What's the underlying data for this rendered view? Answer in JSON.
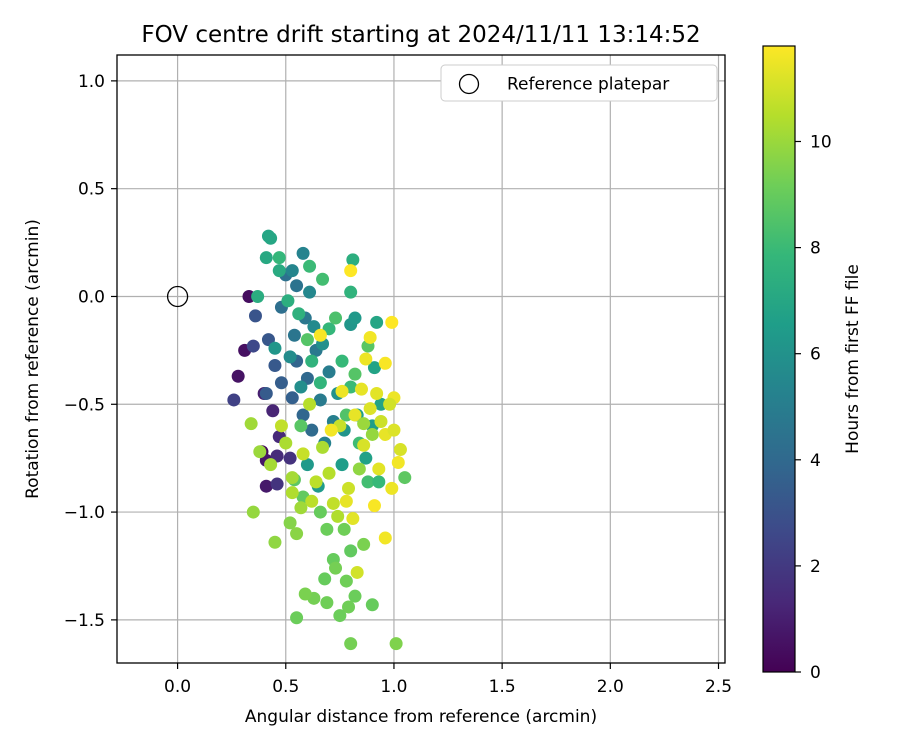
{
  "chart_data": {
    "type": "scatter",
    "title": "FOV centre drift starting at 2024/11/11 13:14:52",
    "xlabel": "Angular distance from reference (arcmin)",
    "ylabel": "Rotation from reference (arcmin)",
    "xlim": [
      -0.28,
      2.53
    ],
    "ylim": [
      -1.7,
      1.12
    ],
    "xticks": [
      0.0,
      0.5,
      1.0,
      1.5,
      2.0,
      2.5
    ],
    "xtick_labels": [
      "0.0",
      "0.5",
      "1.0",
      "1.5",
      "2.0",
      "2.5"
    ],
    "yticks": [
      1.0,
      0.5,
      0.0,
      -0.5,
      -1.0,
      -1.5
    ],
    "ytick_labels": [
      "1.0",
      "0.5",
      "0.0",
      "−0.5",
      "−1.0",
      "−1.5"
    ],
    "grid": true,
    "legend": {
      "placement": "top-right",
      "entries": [
        "Reference platepar"
      ]
    },
    "reference_point": {
      "x": 0.0,
      "y": 0.0
    },
    "colorbar": {
      "label": "Hours from first FF file",
      "colormap": "viridis",
      "range": [
        0,
        11.8
      ],
      "ticks": [
        0,
        2,
        4,
        6,
        8,
        10
      ],
      "tick_labels": [
        "0",
        "2",
        "4",
        "6",
        "8",
        "10"
      ],
      "colors": [
        "#440154",
        "#482878",
        "#3e4989",
        "#31688e",
        "#26828e",
        "#1f9e89",
        "#35b779",
        "#6ece58",
        "#b5de2b",
        "#fde725"
      ]
    },
    "series": [
      {
        "points": [
          [
            0.33,
            0.0,
            0.4
          ],
          [
            0.31,
            -0.25,
            0.5
          ],
          [
            0.28,
            -0.37,
            0.6
          ],
          [
            0.39,
            -0.72,
            0.3
          ],
          [
            0.41,
            -0.76,
            0.7
          ],
          [
            0.41,
            -0.88,
            0.8
          ],
          [
            0.4,
            -0.45,
            1.0
          ],
          [
            0.44,
            -0.53,
            1.2
          ],
          [
            0.47,
            -0.65,
            1.4
          ],
          [
            0.46,
            -0.74,
            1.5
          ],
          [
            0.52,
            -0.75,
            1.7
          ],
          [
            0.46,
            -0.87,
            1.8
          ],
          [
            0.26,
            -0.48,
            2.3
          ],
          [
            0.35,
            -0.23,
            2.6
          ],
          [
            0.36,
            -0.09,
            3.1
          ],
          [
            0.42,
            -0.2,
            3.2
          ],
          [
            0.45,
            -0.32,
            3.3
          ],
          [
            0.41,
            -0.45,
            3.4
          ],
          [
            0.48,
            -0.4,
            3.5
          ],
          [
            0.53,
            -0.47,
            3.6
          ],
          [
            0.55,
            -0.3,
            3.8
          ],
          [
            0.58,
            -0.55,
            3.9
          ],
          [
            0.6,
            -0.38,
            4.0
          ],
          [
            0.62,
            -0.62,
            4.1
          ],
          [
            0.48,
            -0.05,
            4.3
          ],
          [
            0.5,
            0.1,
            4.4
          ],
          [
            0.55,
            0.05,
            4.5
          ],
          [
            0.54,
            -0.18,
            4.6
          ],
          [
            0.59,
            -0.1,
            4.7
          ],
          [
            0.64,
            -0.25,
            4.8
          ],
          [
            0.66,
            -0.48,
            4.9
          ],
          [
            0.7,
            -0.35,
            5.0
          ],
          [
            0.72,
            -0.58,
            5.1
          ],
          [
            0.68,
            -0.68,
            5.2
          ],
          [
            0.58,
            0.2,
            5.3
          ],
          [
            0.53,
            0.12,
            5.4
          ],
          [
            0.61,
            0.02,
            5.5
          ],
          [
            0.63,
            -0.14,
            5.6
          ],
          [
            0.52,
            -0.28,
            5.7
          ],
          [
            0.57,
            -0.42,
            5.8
          ],
          [
            0.67,
            -0.22,
            5.9
          ],
          [
            0.74,
            -0.45,
            6.0
          ],
          [
            0.77,
            -0.62,
            6.1
          ],
          [
            0.8,
            -0.13,
            6.2
          ],
          [
            0.82,
            -0.1,
            6.3
          ],
          [
            0.45,
            -0.24,
            6.2
          ],
          [
            0.6,
            -0.78,
            6.3
          ],
          [
            0.65,
            -0.88,
            6.4
          ],
          [
            0.76,
            -0.78,
            6.5
          ],
          [
            0.83,
            -0.55,
            6.6
          ],
          [
            0.87,
            -0.75,
            6.7
          ],
          [
            0.91,
            -0.33,
            6.8
          ],
          [
            0.92,
            -0.12,
            6.9
          ],
          [
            0.94,
            -0.5,
            6.8
          ],
          [
            0.9,
            -0.6,
            6.5
          ],
          [
            0.42,
            0.28,
            6.9
          ],
          [
            0.43,
            0.27,
            7.0
          ],
          [
            0.41,
            0.18,
            7.1
          ],
          [
            0.47,
            0.12,
            7.2
          ],
          [
            0.37,
            0.0,
            7.3
          ],
          [
            0.51,
            -0.02,
            7.4
          ],
          [
            0.56,
            -0.08,
            7.5
          ],
          [
            0.62,
            -0.3,
            7.6
          ],
          [
            0.66,
            -0.4,
            7.7
          ],
          [
            0.7,
            -0.15,
            7.8
          ],
          [
            0.76,
            -0.3,
            7.9
          ],
          [
            0.8,
            -0.42,
            8.0
          ],
          [
            0.84,
            -0.68,
            8.1
          ],
          [
            0.88,
            -0.86,
            8.2
          ],
          [
            0.93,
            -0.86,
            7.9
          ],
          [
            0.81,
            0.17,
            7.4
          ],
          [
            0.8,
            0.02,
            7.6
          ],
          [
            0.47,
            0.18,
            7.8
          ],
          [
            0.61,
            0.14,
            8.0
          ],
          [
            0.67,
            0.08,
            8.2
          ],
          [
            0.73,
            -0.1,
            8.4
          ],
          [
            0.78,
            -0.55,
            8.5
          ],
          [
            0.82,
            -0.36,
            8.6
          ],
          [
            0.88,
            -0.23,
            8.7
          ],
          [
            1.05,
            -0.84,
            8.8
          ],
          [
            0.6,
            -0.2,
            8.6
          ],
          [
            0.57,
            -0.6,
            8.7
          ],
          [
            0.54,
            -0.85,
            8.8
          ],
          [
            0.58,
            -0.93,
            8.9
          ],
          [
            0.66,
            -1.0,
            9.0
          ],
          [
            0.69,
            -1.08,
            9.1
          ],
          [
            0.77,
            -1.08,
            9.2
          ],
          [
            0.8,
            -1.18,
            8.9
          ],
          [
            0.72,
            -1.22,
            9.0
          ],
          [
            0.75,
            -1.48,
            9.1
          ],
          [
            0.69,
            -1.42,
            9.2
          ],
          [
            0.63,
            -1.4,
            9.3
          ],
          [
            0.59,
            -1.38,
            9.4
          ],
          [
            0.55,
            -1.49,
            9.1
          ],
          [
            0.73,
            -1.26,
            9.3
          ],
          [
            0.68,
            -1.31,
            9.0
          ],
          [
            0.78,
            -1.32,
            9.2
          ],
          [
            0.82,
            -1.39,
            9.1
          ],
          [
            0.9,
            -1.43,
            9.0
          ],
          [
            0.86,
            -1.15,
            9.4
          ],
          [
            0.8,
            -1.61,
            9.3
          ],
          [
            1.01,
            -1.61,
            9.5
          ],
          [
            0.79,
            -1.44,
            9.2
          ],
          [
            0.52,
            -1.05,
            9.6
          ],
          [
            0.55,
            -1.1,
            9.7
          ],
          [
            0.45,
            -1.14,
            9.8
          ],
          [
            0.35,
            -1.0,
            9.9
          ],
          [
            0.38,
            -0.72,
            10.0
          ],
          [
            0.34,
            -0.59,
            10.1
          ],
          [
            0.43,
            -0.78,
            10.2
          ],
          [
            0.5,
            -0.68,
            10.3
          ],
          [
            0.53,
            -0.91,
            10.4
          ],
          [
            0.61,
            -0.5,
            10.5
          ],
          [
            0.64,
            -0.86,
            10.6
          ],
          [
            0.72,
            -0.96,
            10.7
          ],
          [
            0.75,
            -0.6,
            10.8
          ],
          [
            0.79,
            -0.89,
            10.9
          ],
          [
            0.83,
            -1.28,
            11.0
          ],
          [
            0.86,
            -0.69,
            11.1
          ],
          [
            0.89,
            -0.52,
            11.2
          ],
          [
            0.92,
            -0.45,
            11.3
          ],
          [
            0.96,
            -0.64,
            11.4
          ],
          [
            1.0,
            -0.47,
            11.5
          ],
          [
            1.02,
            -0.77,
            11.6
          ],
          [
            0.91,
            -0.97,
            11.7
          ],
          [
            0.96,
            -1.12,
            11.6
          ],
          [
            0.99,
            -0.89,
            11.5
          ],
          [
            0.78,
            -0.95,
            11.4
          ],
          [
            0.81,
            -1.03,
            11.3
          ],
          [
            0.85,
            -0.43,
            11.4
          ],
          [
            0.87,
            -0.29,
            11.5
          ],
          [
            0.89,
            -0.19,
            11.6
          ],
          [
            0.96,
            -0.31,
            11.7
          ],
          [
            0.99,
            -0.12,
            11.8
          ],
          [
            0.8,
            0.12,
            11.8
          ],
          [
            0.66,
            -0.18,
            11.7
          ],
          [
            0.71,
            -0.62,
            11.6
          ],
          [
            0.76,
            -0.44,
            11.5
          ],
          [
            0.82,
            -0.55,
            11.4
          ],
          [
            0.93,
            -0.8,
            11.3
          ],
          [
            1.0,
            -0.62,
            11.2
          ],
          [
            1.03,
            -0.71,
            11.1
          ],
          [
            0.98,
            -0.5,
            11.0
          ],
          [
            0.94,
            -0.58,
            10.9
          ],
          [
            0.58,
            -0.73,
            10.8
          ],
          [
            0.48,
            -0.6,
            10.7
          ],
          [
            0.62,
            -0.95,
            10.6
          ],
          [
            0.7,
            -0.82,
            10.5
          ],
          [
            0.74,
            -1.02,
            10.4
          ],
          [
            0.67,
            -0.7,
            10.3
          ],
          [
            0.53,
            -0.84,
            10.2
          ],
          [
            0.57,
            -0.98,
            10.1
          ],
          [
            0.86,
            -0.59,
            10.0
          ],
          [
            0.9,
            -0.64,
            9.9
          ],
          [
            0.84,
            -0.8,
            9.8
          ]
        ]
      }
    ]
  }
}
